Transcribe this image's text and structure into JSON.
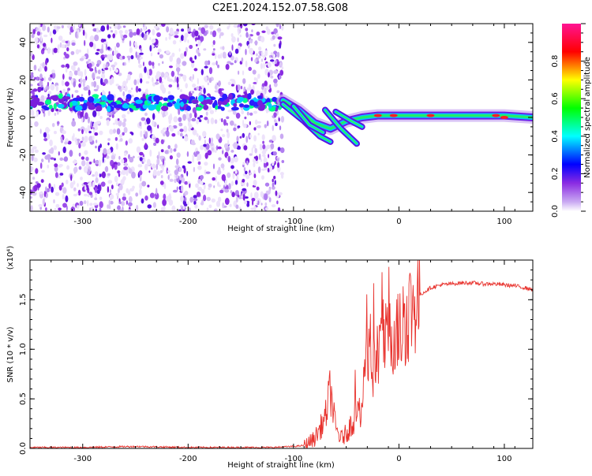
{
  "title": "C2E1.2024.152.07.58.G08",
  "chart_data": [
    {
      "type": "heatmap",
      "xlabel": "Height of straight line (km)",
      "ylabel": "Frequency (Hz)",
      "xlim": [
        -350,
        127
      ],
      "ylim": [
        -50,
        50
      ],
      "xticks": [
        -300,
        -200,
        -100,
        0,
        100
      ],
      "yticks": [
        -40,
        -20,
        0,
        20,
        40
      ],
      "colorbar": {
        "label": "Normalized spectral amplitude",
        "range": [
          0,
          1
        ],
        "ticks": [
          "0.0",
          "0.2",
          "0.4",
          "0.6",
          "0.8"
        ],
        "colors": [
          "#ffffff",
          "#c9a9f2",
          "#8a2be2",
          "#0000ff",
          "#00ffff",
          "#00ff00",
          "#ffff00",
          "#ff0000",
          "#ff1493"
        ]
      },
      "noise_region_x": [
        -350,
        -110
      ],
      "noise_band_freq_hz": 8,
      "signal_ridge": [
        {
          "x": -110,
          "f": 9
        },
        {
          "x": -95,
          "f": 4
        },
        {
          "x": -80,
          "f": -3
        },
        {
          "x": -65,
          "f": -6
        },
        {
          "x": -50,
          "f": -2
        },
        {
          "x": -35,
          "f": 0
        },
        {
          "x": -20,
          "f": 1
        },
        {
          "x": 0,
          "f": 1
        },
        {
          "x": 50,
          "f": 1
        },
        {
          "x": 100,
          "f": 1
        },
        {
          "x": 127,
          "f": 0
        }
      ]
    },
    {
      "type": "line",
      "xlabel": "Height of straight line (km)",
      "ylabel": "SNR (10 * v/v)",
      "yscale_note": "(x10⁴)",
      "xlim": [
        -350,
        127
      ],
      "ylim": [
        0,
        1.9
      ],
      "xticks": [
        -300,
        -200,
        -100,
        0,
        100
      ],
      "yticks": [
        "0.0",
        "0.5",
        "1.0",
        "1.5"
      ],
      "color": "#e8322d",
      "series": [
        {
          "x": [
            -350,
            -300,
            -250,
            -200,
            -150,
            -120,
            -100,
            -90,
            -80,
            -70,
            -65,
            -60,
            -55,
            -50,
            -45,
            -40,
            -35,
            -30,
            -25,
            -20,
            -15,
            -10,
            -5,
            0,
            5,
            10,
            20,
            30,
            40,
            50,
            60,
            70,
            80,
            90,
            100,
            110,
            120,
            127
          ],
          "y": [
            0.01,
            0.01,
            0.02,
            0.01,
            0.01,
            0.01,
            0.02,
            0.03,
            0.1,
            0.3,
            0.6,
            0.2,
            0.1,
            0.15,
            0.25,
            0.35,
            0.4,
            0.9,
            0.8,
            1.0,
            1.1,
            1.05,
            1.2,
            1.15,
            1.3,
            1.4,
            1.55,
            1.62,
            1.65,
            1.66,
            1.67,
            1.67,
            1.66,
            1.66,
            1.65,
            1.64,
            1.62,
            1.6
          ]
        }
      ]
    }
  ]
}
